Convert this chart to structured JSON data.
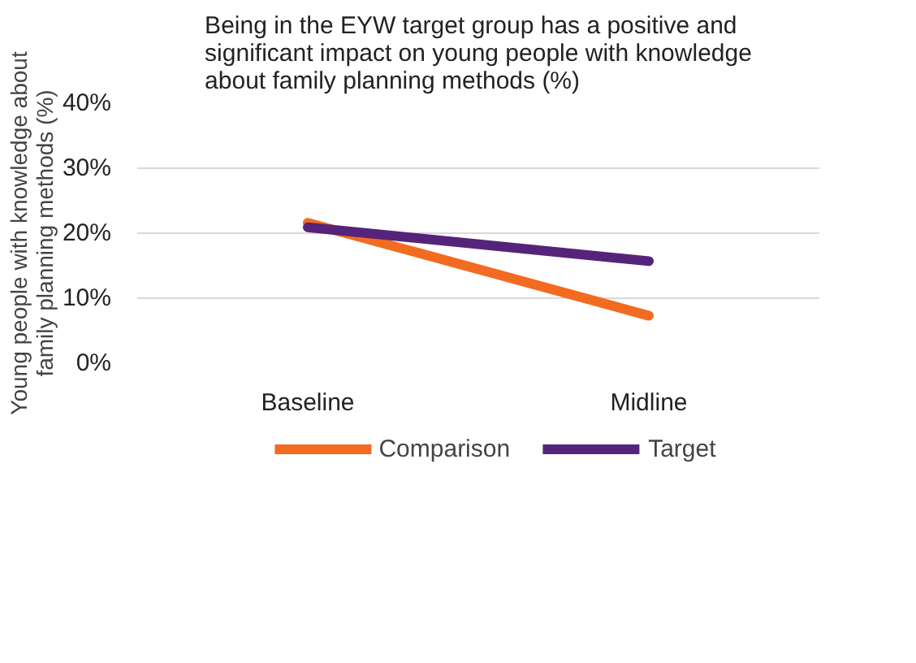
{
  "chart_data": {
    "type": "line",
    "title": "Being in the EYW target group has a positive and significant impact on young people with knowledge about family planning methods (%)",
    "ylabel": "Young people with knowledge about family planning methods (%)",
    "categories": [
      "Baseline",
      "Midline"
    ],
    "series": [
      {
        "name": "Comparison",
        "color": "#f26b21",
        "values": [
          21.6,
          7.3
        ]
      },
      {
        "name": "Target",
        "color": "#55247a",
        "values": [
          20.9,
          15.7
        ]
      }
    ],
    "ylim": [
      0,
      40
    ],
    "yticks": [
      {
        "value": 0,
        "label": "0%"
      },
      {
        "value": 10,
        "label": "10%"
      },
      {
        "value": 20,
        "label": "20%"
      },
      {
        "value": 30,
        "label": "30%"
      },
      {
        "value": 40,
        "label": "40%"
      }
    ],
    "grid": "y",
    "legend": "bottom",
    "marker": "none",
    "line_style": "solid"
  }
}
